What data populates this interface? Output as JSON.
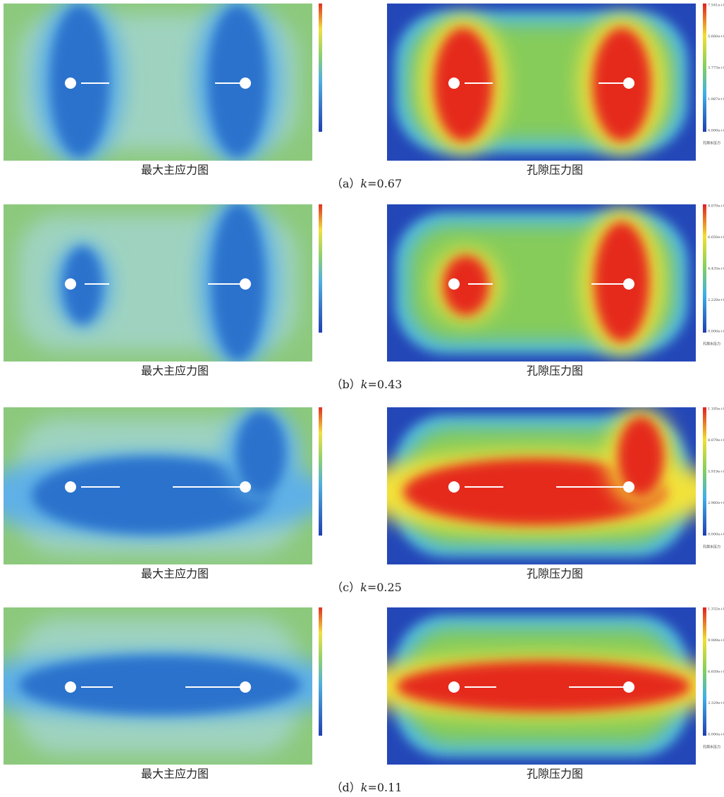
{
  "rows": [
    {
      "left_label": "最大主应力图",
      "right_label": "孔隙压力图",
      "caption": {
        "label": "（a）",
        "var": "k",
        "value": "=0.67"
      },
      "right_ticks": [
        "7.541e+006",
        "5.660e+006",
        "3.773e+006",
        "1.887e+006",
        "0.000e+000"
      ],
      "right_legend": "孔隙水压力"
    },
    {
      "left_label": "最大主应力图",
      "right_label": "孔隙压力图",
      "caption": {
        "label": "（b）",
        "var": "k",
        "value": "=0.43"
      },
      "right_ticks": [
        "8.870e+006",
        "6.650e+006",
        "4.435e+006",
        "2.220e+006",
        "0.000e+000"
      ],
      "right_legend": "孔隙水压力"
    },
    {
      "left_label": "最大主应力图",
      "right_label": "孔隙压力图",
      "caption": {
        "label": "（c）",
        "var": "k",
        "value": "=0.25"
      },
      "right_ticks": [
        "1.185e+007",
        "8.879e+006",
        "5.919e+006",
        "2.960e+006",
        "0.000e+000"
      ],
      "right_legend": "孔隙水压力"
    },
    {
      "left_label": "最大主应力图",
      "right_label": "孔隙压力图",
      "caption": {
        "label": "（d）",
        "var": "k",
        "value": "=0.11"
      },
      "right_ticks": [
        "1.332e+007",
        "9.989e+006",
        "6.659e+006",
        "3.329e+006",
        "0.000e+000"
      ],
      "right_legend": "孔隙水压力"
    }
  ]
}
